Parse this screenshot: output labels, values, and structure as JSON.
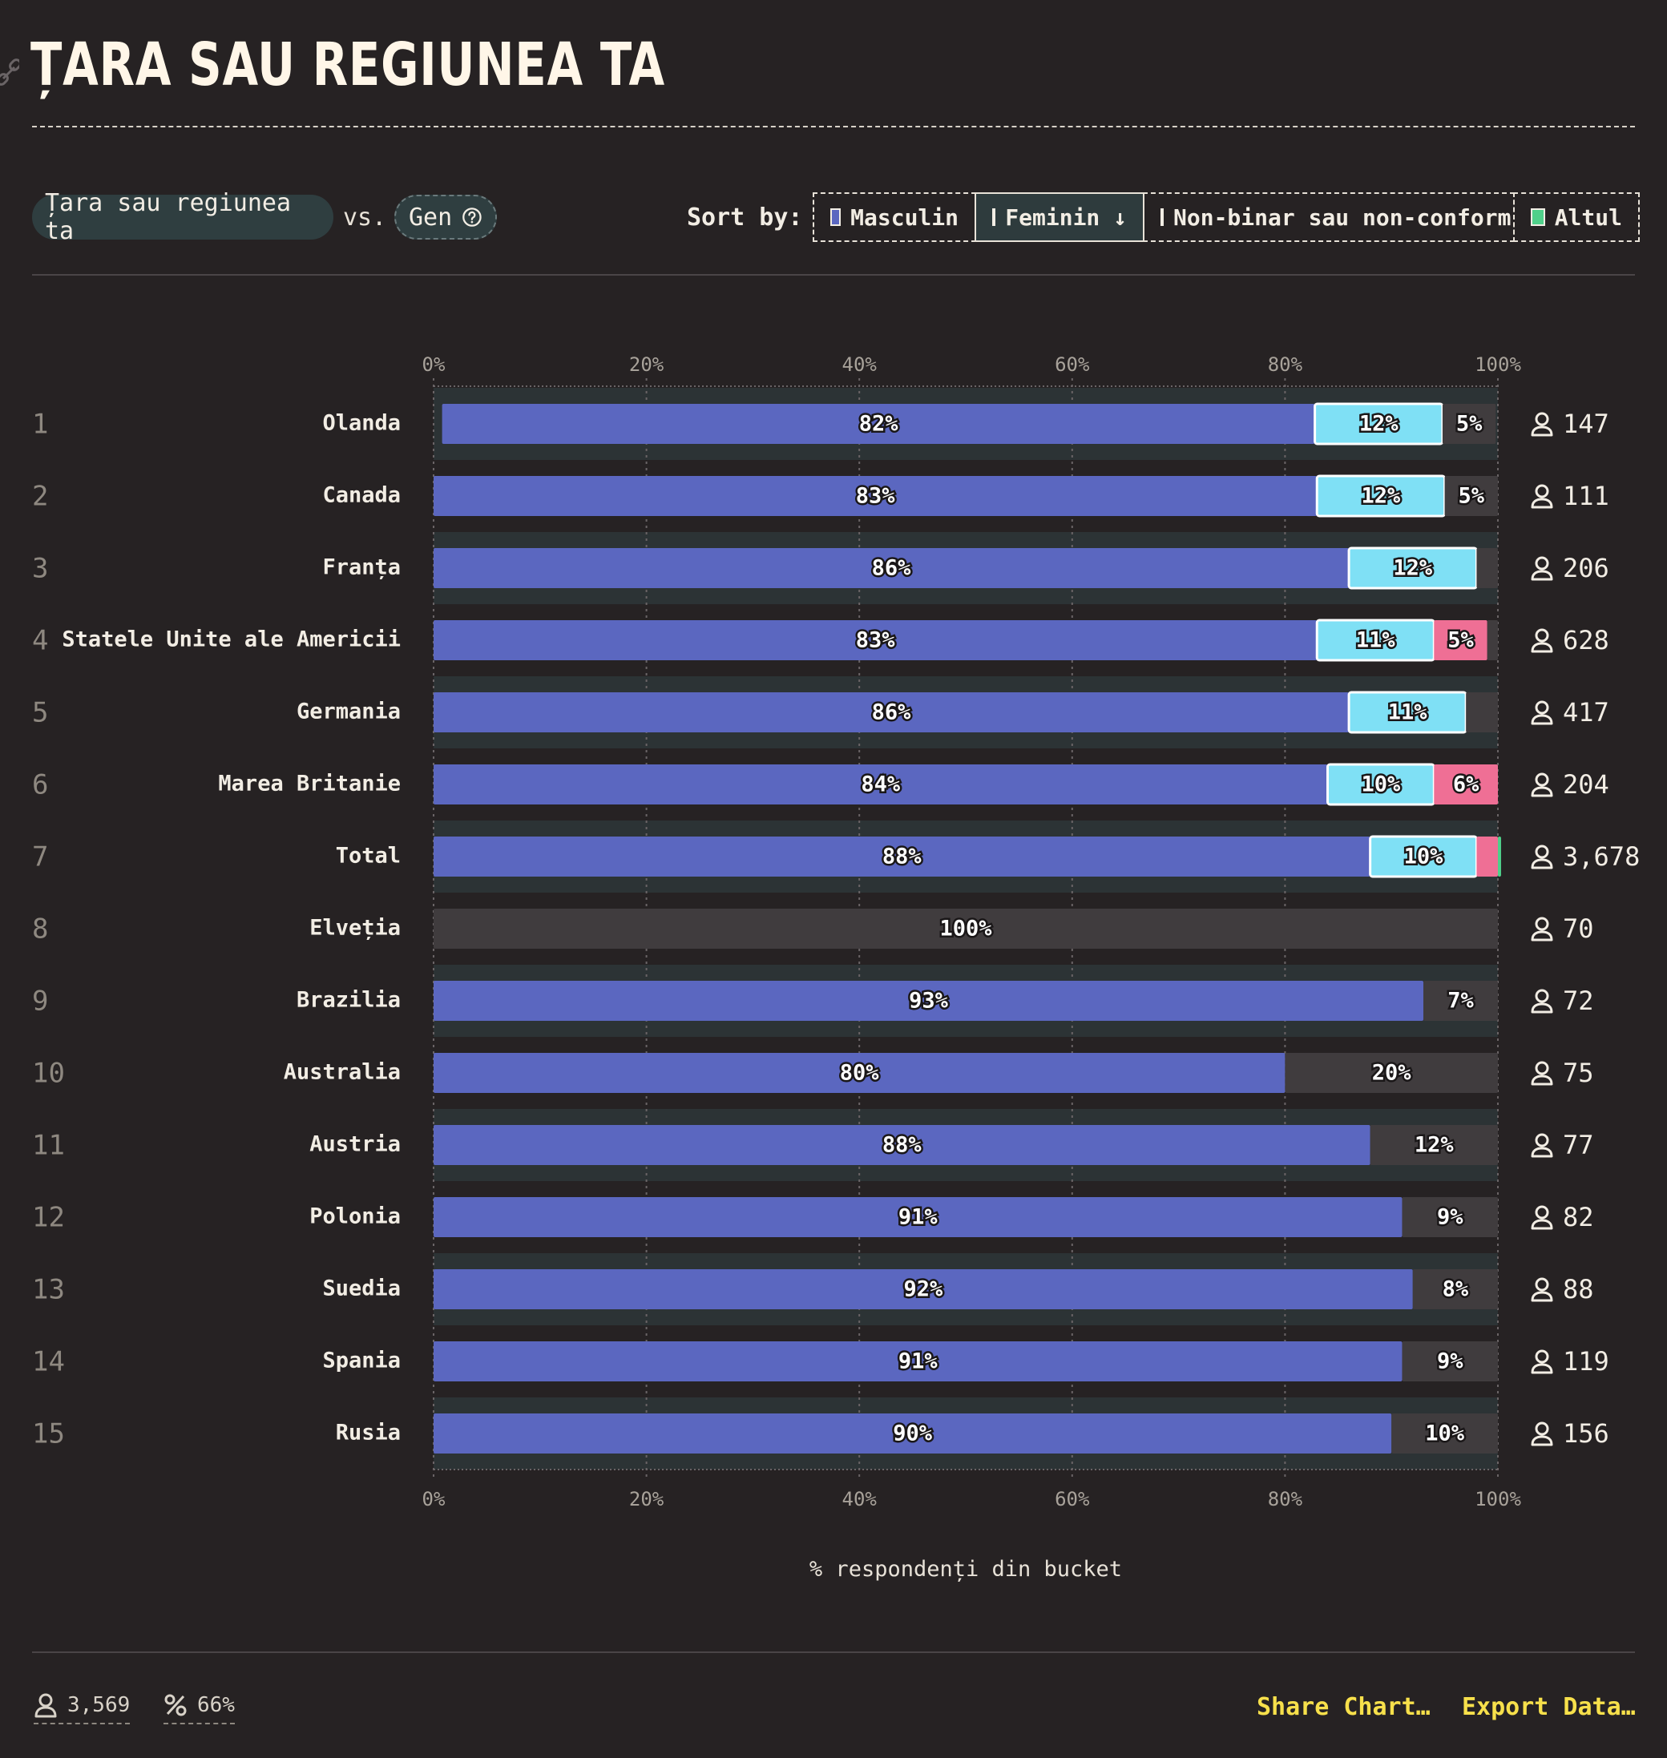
{
  "header": {
    "title": "ȚARA SAU REGIUNEA TA"
  },
  "controls": {
    "primary": "Țara sau regiunea ta",
    "vs": "vs.",
    "secondary": "Gen",
    "sort_label": "Sort by:",
    "sort_options": [
      {
        "label": "Masculin",
        "color": "#5b67c0",
        "active": false
      },
      {
        "label": "Feminin ↓",
        "color": "#7fe0f5",
        "active": true
      },
      {
        "label": "Non-binar sau non-conform",
        "color": "#ef6f95",
        "active": false
      },
      {
        "label": "Altul",
        "color": "#4fd08a",
        "active": false
      }
    ]
  },
  "chart_data": {
    "type": "bar",
    "stacked": true,
    "orientation": "horizontal",
    "xlabel": "% respondenți din bucket",
    "xlim": [
      0,
      100
    ],
    "x_ticks": [
      "0%",
      "20%",
      "40%",
      "60%",
      "80%",
      "100%"
    ],
    "grid": true,
    "colors": {
      "Masculin": "#5b67c0",
      "Feminin": "#7fe0f5",
      "Non-binar sau non-conform": "#ef6f95",
      "Altul": "#4fd08a",
      "Other": "#403c3e"
    },
    "rows": [
      {
        "rank": "1",
        "name": "Olanda",
        "count": "147",
        "values": {
          "Masculin": 82,
          "Feminin": 12,
          "Non-binar sau non-conform": 0,
          "Altul": 0,
          "Other": 5
        },
        "labels": {
          "Masculin": "82%",
          "Feminin": "12%",
          "Other": "5%"
        }
      },
      {
        "rank": "2",
        "name": "Canada",
        "count": "111",
        "values": {
          "Masculin": 83,
          "Feminin": 12,
          "Non-binar sau non-conform": 0,
          "Altul": 0,
          "Other": 5
        },
        "labels": {
          "Masculin": "83%",
          "Feminin": "12%",
          "Other": "5%"
        }
      },
      {
        "rank": "3",
        "name": "Franța",
        "count": "206",
        "values": {
          "Masculin": 86,
          "Feminin": 12,
          "Non-binar sau non-conform": 0,
          "Altul": 0,
          "Other": 2
        },
        "labels": {
          "Masculin": "86%",
          "Feminin": "12%"
        }
      },
      {
        "rank": "4",
        "name": "Statele Unite ale Americii",
        "count": "628",
        "values": {
          "Masculin": 83,
          "Feminin": 11,
          "Non-binar sau non-conform": 5,
          "Altul": 0,
          "Other": 1
        },
        "labels": {
          "Masculin": "83%",
          "Feminin": "11%",
          "Non-binar sau non-conform": "5%"
        }
      },
      {
        "rank": "5",
        "name": "Germania",
        "count": "417",
        "values": {
          "Masculin": 86,
          "Feminin": 11,
          "Non-binar sau non-conform": 0,
          "Altul": 0,
          "Other": 3
        },
        "labels": {
          "Masculin": "86%",
          "Feminin": "11%"
        }
      },
      {
        "rank": "6",
        "name": "Marea Britanie",
        "count": "204",
        "values": {
          "Masculin": 84,
          "Feminin": 10,
          "Non-binar sau non-conform": 6,
          "Altul": 0,
          "Other": 0
        },
        "labels": {
          "Masculin": "84%",
          "Feminin": "10%",
          "Non-binar sau non-conform": "6%"
        }
      },
      {
        "rank": "7",
        "name": "Total",
        "count": "3,678",
        "values": {
          "Masculin": 88,
          "Feminin": 10,
          "Non-binar sau non-conform": 2,
          "Altul": 0.3,
          "Other": 0
        },
        "labels": {
          "Masculin": "88%",
          "Feminin": "10%"
        }
      },
      {
        "rank": "8",
        "name": "Elveția",
        "count": "70",
        "values": {
          "Masculin": 0,
          "Feminin": 0,
          "Non-binar sau non-conform": 0,
          "Altul": 0,
          "Other": 100
        },
        "labels": {
          "Other": "100%"
        }
      },
      {
        "rank": "9",
        "name": "Brazilia",
        "count": "72",
        "values": {
          "Masculin": 93,
          "Feminin": 0,
          "Non-binar sau non-conform": 0,
          "Altul": 0,
          "Other": 7
        },
        "labels": {
          "Masculin": "93%",
          "Other": "7%"
        }
      },
      {
        "rank": "10",
        "name": "Australia",
        "count": "75",
        "values": {
          "Masculin": 80,
          "Feminin": 0,
          "Non-binar sau non-conform": 0,
          "Altul": 0,
          "Other": 20
        },
        "labels": {
          "Masculin": "80%",
          "Other": "20%"
        }
      },
      {
        "rank": "11",
        "name": "Austria",
        "count": "77",
        "values": {
          "Masculin": 88,
          "Feminin": 0,
          "Non-binar sau non-conform": 0,
          "Altul": 0,
          "Other": 12
        },
        "labels": {
          "Masculin": "88%",
          "Other": "12%"
        }
      },
      {
        "rank": "12",
        "name": "Polonia",
        "count": "82",
        "values": {
          "Masculin": 91,
          "Feminin": 0,
          "Non-binar sau non-conform": 0,
          "Altul": 0,
          "Other": 9
        },
        "labels": {
          "Masculin": "91%",
          "Other": "9%"
        }
      },
      {
        "rank": "13",
        "name": "Suedia",
        "count": "88",
        "values": {
          "Masculin": 92,
          "Feminin": 0,
          "Non-binar sau non-conform": 0,
          "Altul": 0,
          "Other": 8
        },
        "labels": {
          "Masculin": "92%",
          "Other": "8%"
        }
      },
      {
        "rank": "14",
        "name": "Spania",
        "count": "119",
        "values": {
          "Masculin": 91,
          "Feminin": 0,
          "Non-binar sau non-conform": 0,
          "Altul": 0,
          "Other": 9
        },
        "labels": {
          "Masculin": "91%",
          "Other": "9%"
        }
      },
      {
        "rank": "15",
        "name": "Rusia",
        "count": "156",
        "values": {
          "Masculin": 90,
          "Feminin": 0,
          "Non-binar sau non-conform": 0,
          "Altul": 0,
          "Other": 10
        },
        "labels": {
          "Masculin": "90%",
          "Other": "10%"
        }
      }
    ]
  },
  "footer": {
    "respondents": "3,569",
    "percent": "66%",
    "share": "Share Chart…",
    "export": "Export Data…"
  }
}
